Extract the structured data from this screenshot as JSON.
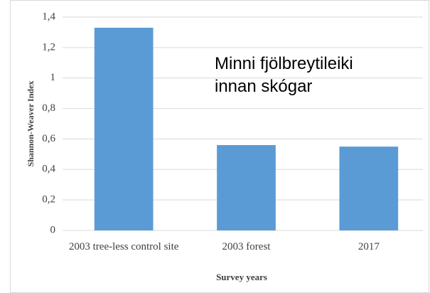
{
  "chart_data": {
    "type": "bar",
    "categories": [
      "2003 tree-less control site",
      "2003 forest",
      "2017"
    ],
    "values": [
      1.33,
      0.56,
      0.55
    ],
    "color": "#5b9bd5",
    "ylim": [
      0,
      1.4
    ],
    "yticks": [
      0,
      {
        "value": 0.2,
        "label": "0,2"
      },
      {
        "value": 0.4,
        "label": "0,4"
      },
      {
        "value": 0.6,
        "label": "0,6"
      },
      {
        "value": 0.8,
        "label": "0,8"
      },
      1,
      {
        "value": 1.2,
        "label": "1,2"
      },
      {
        "value": 1.4,
        "label": "1,4"
      }
    ],
    "ylabel": "Shannon-Weaver Index",
    "xlabel": "Survey years",
    "annotation": [
      "Minni fjölbreytileiki",
      "innan skógar"
    ],
    "grid": true
  }
}
